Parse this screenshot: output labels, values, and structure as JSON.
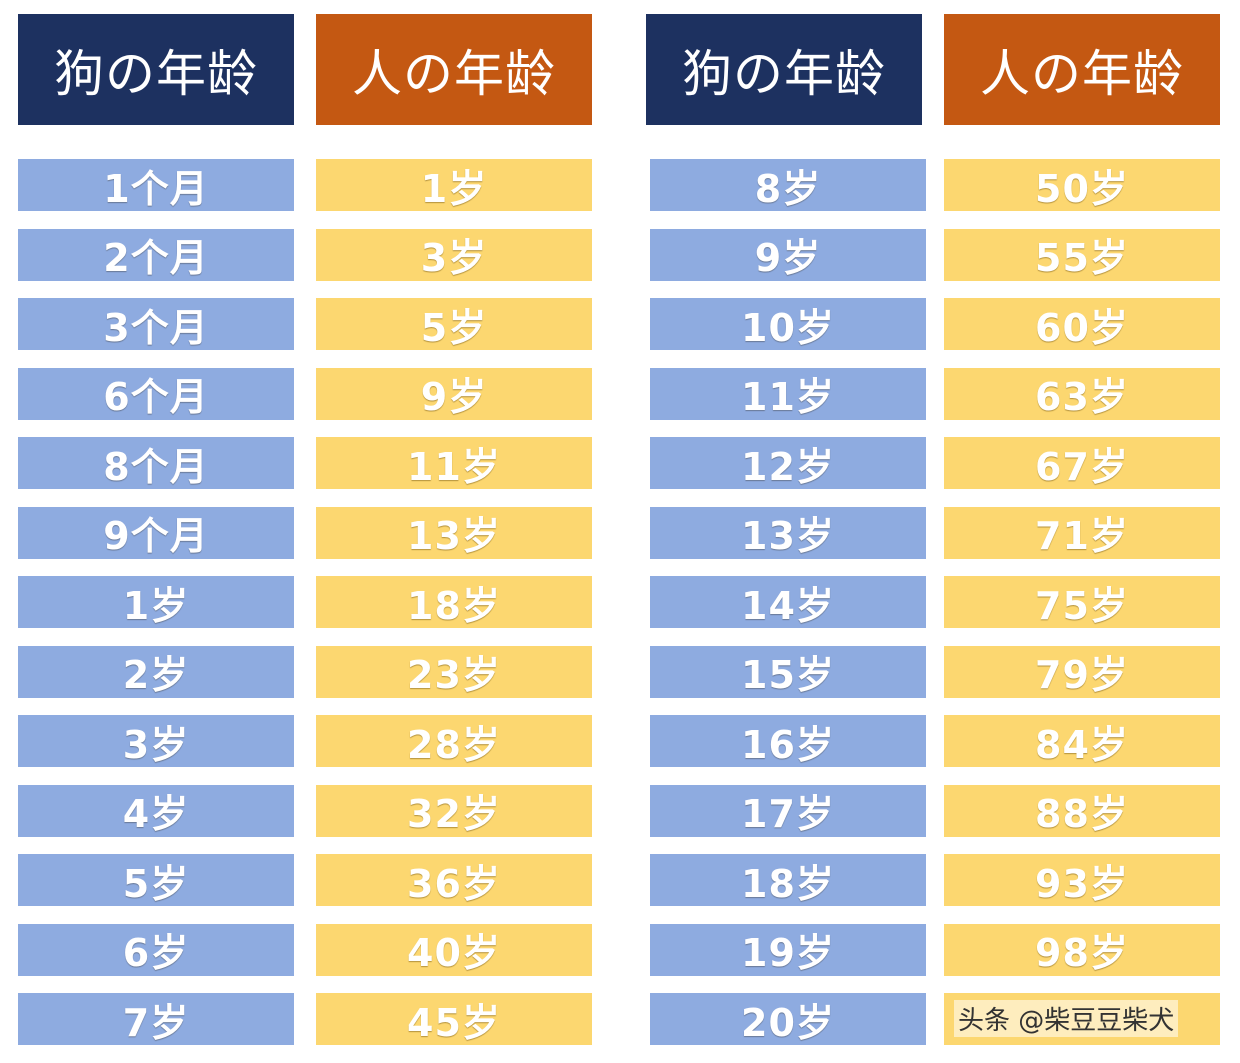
{
  "headers": {
    "dog_age": "狗の年龄",
    "human_age": "人の年龄"
  },
  "left_table": {
    "dog": [
      "1个月",
      "2个月",
      "3个月",
      "6个月",
      "8个月",
      "9个月",
      "1岁",
      "2岁",
      "3岁",
      "4岁",
      "5岁",
      "6岁",
      "7岁"
    ],
    "human": [
      "1岁",
      "3岁",
      "5岁",
      "9岁",
      "11岁",
      "13岁",
      "18岁",
      "23岁",
      "28岁",
      "32岁",
      "36岁",
      "40岁",
      "45岁"
    ]
  },
  "right_table": {
    "dog": [
      "8岁",
      "9岁",
      "10岁",
      "11岁",
      "12岁",
      "13岁",
      "14岁",
      "15岁",
      "16岁",
      "17岁",
      "18岁",
      "19岁",
      "20岁"
    ],
    "human": [
      "50岁",
      "55岁",
      "60岁",
      "63岁",
      "67岁",
      "71岁",
      "75岁",
      "79岁",
      "84岁",
      "88岁",
      "93岁",
      "98岁",
      ""
    ]
  },
  "watermark": "头条 @柴豆豆柴犬",
  "colors": {
    "dog_header": "#1d3160",
    "human_header": "#c45812",
    "dog_cell": "#8eabe0",
    "human_cell": "#fcd770"
  }
}
